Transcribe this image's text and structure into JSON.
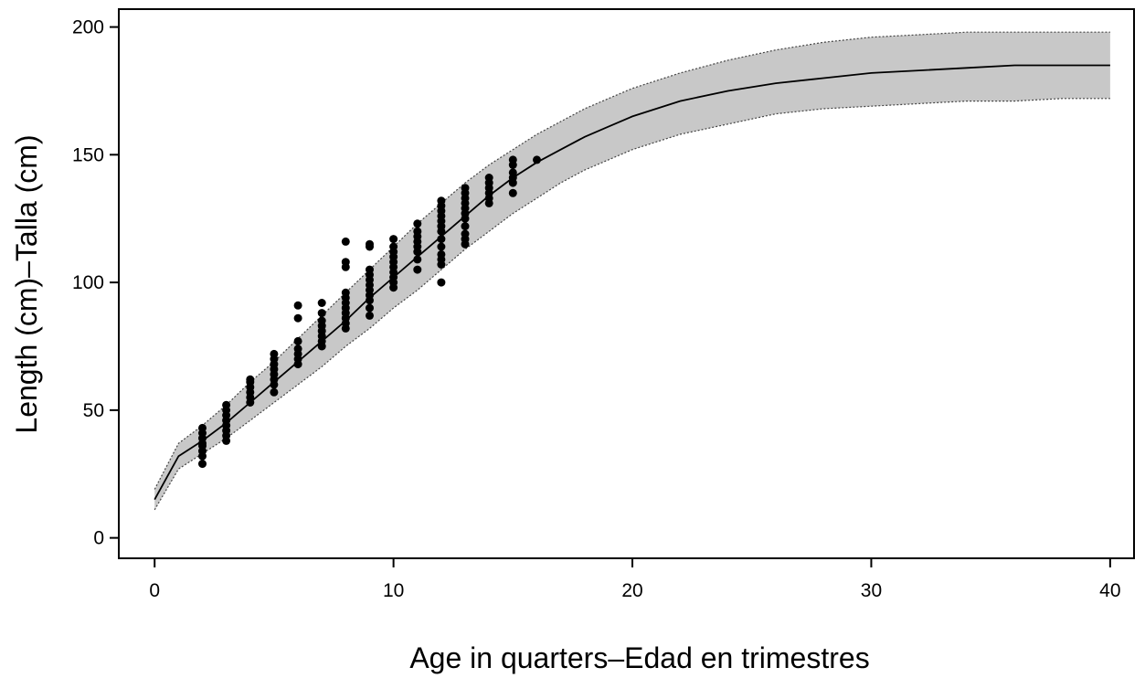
{
  "chart_data": {
    "type": "scatter",
    "title": "",
    "xlabel": "Age in quarters–Edad en trimestres",
    "ylabel": "Length (cm)–Talla (cm)",
    "xlim": [
      -1.5,
      41
    ],
    "ylim": [
      -8,
      207
    ],
    "x_ticks": [
      0,
      10,
      20,
      30,
      40
    ],
    "x_tick_labels": [
      "0",
      "10",
      "20",
      "30",
      "40"
    ],
    "y_ticks": [
      0,
      50,
      100,
      150,
      200
    ],
    "y_tick_labels": [
      "0",
      "50",
      "100",
      "150",
      "200"
    ],
    "grid": false,
    "legend": "none",
    "colors": {
      "band": "#c8c8c8",
      "curve": "#000000",
      "points": "#000000"
    },
    "fitted_curve": {
      "x": [
        0,
        1,
        2,
        3,
        4,
        5,
        6,
        7,
        8,
        9,
        10,
        11,
        12,
        13,
        14,
        15,
        16,
        17,
        18,
        19,
        20,
        22,
        24,
        26,
        28,
        30,
        32,
        34,
        36,
        38,
        40
      ],
      "y": [
        15,
        32,
        38,
        45,
        53,
        61,
        69,
        77,
        85,
        94,
        102,
        110,
        118,
        126,
        134,
        141,
        147,
        152,
        157,
        161,
        165,
        171,
        175,
        178,
        180,
        182,
        183,
        184,
        185,
        185,
        185
      ]
    },
    "band_upper": {
      "x": [
        0,
        1,
        2,
        3,
        4,
        5,
        6,
        7,
        8,
        9,
        10,
        11,
        12,
        13,
        14,
        15,
        16,
        17,
        18,
        19,
        20,
        22,
        24,
        26,
        28,
        30,
        32,
        34,
        36,
        38,
        40
      ],
      "y": [
        19,
        37,
        44,
        52,
        61,
        69,
        78,
        87,
        96,
        105,
        114,
        123,
        131,
        139,
        146,
        152,
        158,
        163,
        168,
        172,
        176,
        182,
        187,
        191,
        194,
        196,
        197,
        198,
        198,
        198,
        198
      ]
    },
    "band_lower": {
      "x": [
        0,
        1,
        2,
        3,
        4,
        5,
        6,
        7,
        8,
        9,
        10,
        11,
        12,
        13,
        14,
        15,
        16,
        17,
        18,
        19,
        20,
        22,
        24,
        26,
        28,
        30,
        32,
        34,
        36,
        38,
        40
      ],
      "y": [
        11,
        27,
        33,
        39,
        46,
        53,
        60,
        67,
        75,
        82,
        90,
        97,
        105,
        113,
        120,
        127,
        133,
        139,
        144,
        148,
        152,
        158,
        162,
        166,
        168,
        169,
        170,
        171,
        171,
        172,
        172
      ]
    },
    "observations": [
      {
        "x": 2,
        "y": 29
      },
      {
        "x": 2,
        "y": 32
      },
      {
        "x": 2,
        "y": 34
      },
      {
        "x": 2,
        "y": 36
      },
      {
        "x": 2,
        "y": 37
      },
      {
        "x": 2,
        "y": 39
      },
      {
        "x": 2,
        "y": 41
      },
      {
        "x": 2,
        "y": 43
      },
      {
        "x": 3,
        "y": 38
      },
      {
        "x": 3,
        "y": 40
      },
      {
        "x": 3,
        "y": 42
      },
      {
        "x": 3,
        "y": 44
      },
      {
        "x": 3,
        "y": 46
      },
      {
        "x": 3,
        "y": 48
      },
      {
        "x": 3,
        "y": 50
      },
      {
        "x": 3,
        "y": 52
      },
      {
        "x": 4,
        "y": 53
      },
      {
        "x": 4,
        "y": 55
      },
      {
        "x": 4,
        "y": 57
      },
      {
        "x": 4,
        "y": 59
      },
      {
        "x": 4,
        "y": 61
      },
      {
        "x": 4,
        "y": 62
      },
      {
        "x": 5,
        "y": 57
      },
      {
        "x": 5,
        "y": 60
      },
      {
        "x": 5,
        "y": 62
      },
      {
        "x": 5,
        "y": 64
      },
      {
        "x": 5,
        "y": 66
      },
      {
        "x": 5,
        "y": 68
      },
      {
        "x": 5,
        "y": 70
      },
      {
        "x": 5,
        "y": 72
      },
      {
        "x": 6,
        "y": 68
      },
      {
        "x": 6,
        "y": 70
      },
      {
        "x": 6,
        "y": 72
      },
      {
        "x": 6,
        "y": 74
      },
      {
        "x": 6,
        "y": 77
      },
      {
        "x": 6,
        "y": 86
      },
      {
        "x": 6,
        "y": 91
      },
      {
        "x": 7,
        "y": 75
      },
      {
        "x": 7,
        "y": 77
      },
      {
        "x": 7,
        "y": 79
      },
      {
        "x": 7,
        "y": 81
      },
      {
        "x": 7,
        "y": 83
      },
      {
        "x": 7,
        "y": 85
      },
      {
        "x": 7,
        "y": 88
      },
      {
        "x": 7,
        "y": 92
      },
      {
        "x": 8,
        "y": 82
      },
      {
        "x": 8,
        "y": 84
      },
      {
        "x": 8,
        "y": 86
      },
      {
        "x": 8,
        "y": 88
      },
      {
        "x": 8,
        "y": 90
      },
      {
        "x": 8,
        "y": 92
      },
      {
        "x": 8,
        "y": 94
      },
      {
        "x": 8,
        "y": 96
      },
      {
        "x": 8,
        "y": 106
      },
      {
        "x": 8,
        "y": 108
      },
      {
        "x": 8,
        "y": 116
      },
      {
        "x": 9,
        "y": 87
      },
      {
        "x": 9,
        "y": 90
      },
      {
        "x": 9,
        "y": 93
      },
      {
        "x": 9,
        "y": 95
      },
      {
        "x": 9,
        "y": 97
      },
      {
        "x": 9,
        "y": 99
      },
      {
        "x": 9,
        "y": 101
      },
      {
        "x": 9,
        "y": 103
      },
      {
        "x": 9,
        "y": 105
      },
      {
        "x": 9,
        "y": 114
      },
      {
        "x": 9,
        "y": 115
      },
      {
        "x": 10,
        "y": 98
      },
      {
        "x": 10,
        "y": 100
      },
      {
        "x": 10,
        "y": 102
      },
      {
        "x": 10,
        "y": 104
      },
      {
        "x": 10,
        "y": 106
      },
      {
        "x": 10,
        "y": 108
      },
      {
        "x": 10,
        "y": 110
      },
      {
        "x": 10,
        "y": 112
      },
      {
        "x": 10,
        "y": 114
      },
      {
        "x": 10,
        "y": 117
      },
      {
        "x": 11,
        "y": 105
      },
      {
        "x": 11,
        "y": 109
      },
      {
        "x": 11,
        "y": 112
      },
      {
        "x": 11,
        "y": 114
      },
      {
        "x": 11,
        "y": 116
      },
      {
        "x": 11,
        "y": 118
      },
      {
        "x": 11,
        "y": 120
      },
      {
        "x": 11,
        "y": 123
      },
      {
        "x": 12,
        "y": 100
      },
      {
        "x": 12,
        "y": 107
      },
      {
        "x": 12,
        "y": 109
      },
      {
        "x": 12,
        "y": 111
      },
      {
        "x": 12,
        "y": 114
      },
      {
        "x": 12,
        "y": 117
      },
      {
        "x": 12,
        "y": 120
      },
      {
        "x": 12,
        "y": 122
      },
      {
        "x": 12,
        "y": 124
      },
      {
        "x": 12,
        "y": 126
      },
      {
        "x": 12,
        "y": 128
      },
      {
        "x": 12,
        "y": 130
      },
      {
        "x": 12,
        "y": 132
      },
      {
        "x": 13,
        "y": 115
      },
      {
        "x": 13,
        "y": 117
      },
      {
        "x": 13,
        "y": 119
      },
      {
        "x": 13,
        "y": 122
      },
      {
        "x": 13,
        "y": 125
      },
      {
        "x": 13,
        "y": 127
      },
      {
        "x": 13,
        "y": 129
      },
      {
        "x": 13,
        "y": 131
      },
      {
        "x": 13,
        "y": 133
      },
      {
        "x": 13,
        "y": 135
      },
      {
        "x": 13,
        "y": 137
      },
      {
        "x": 14,
        "y": 131
      },
      {
        "x": 14,
        "y": 133
      },
      {
        "x": 14,
        "y": 135
      },
      {
        "x": 14,
        "y": 137
      },
      {
        "x": 14,
        "y": 139
      },
      {
        "x": 14,
        "y": 141
      },
      {
        "x": 15,
        "y": 135
      },
      {
        "x": 15,
        "y": 139
      },
      {
        "x": 15,
        "y": 141
      },
      {
        "x": 15,
        "y": 143
      },
      {
        "x": 15,
        "y": 146
      },
      {
        "x": 15,
        "y": 148
      },
      {
        "x": 16,
        "y": 148
      }
    ]
  }
}
